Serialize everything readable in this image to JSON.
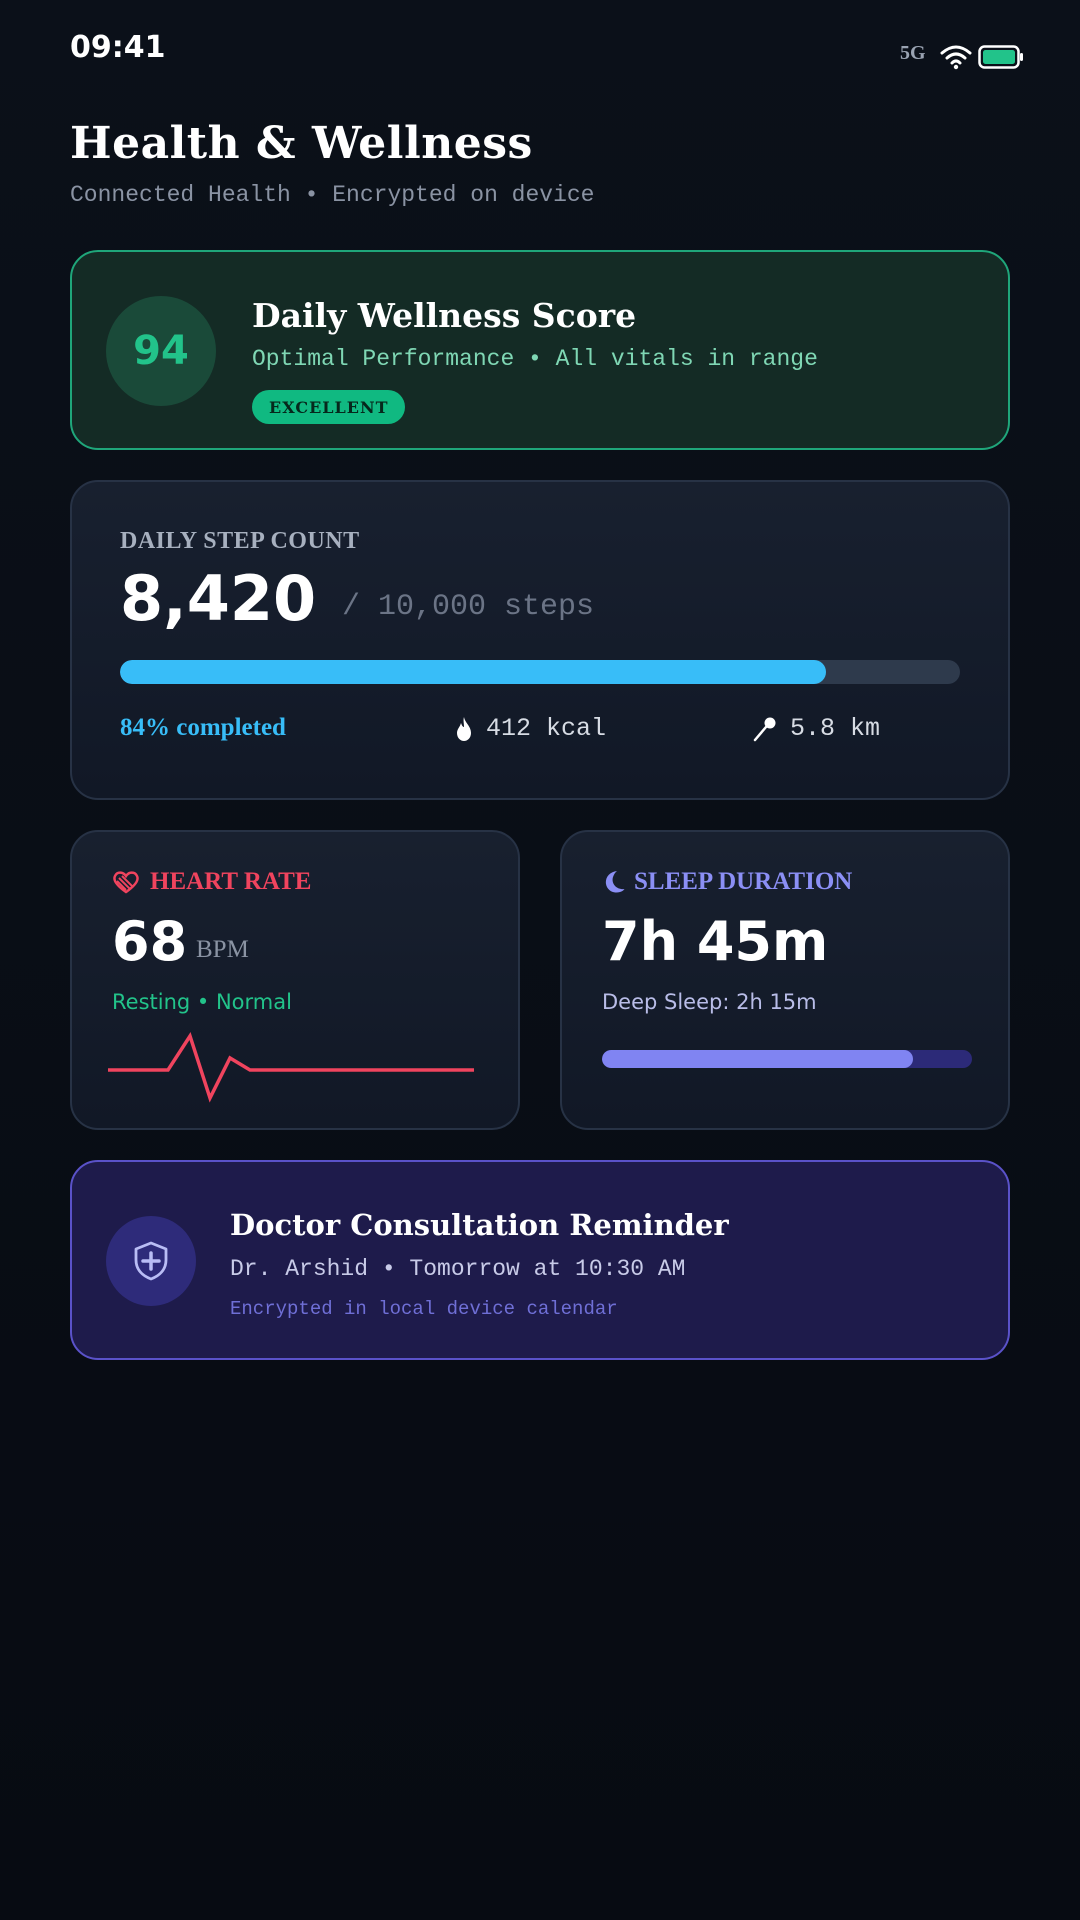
{
  "status_bar": {
    "time": "09:41",
    "network": "5G",
    "battery_icon": "battery-icon",
    "wifi_icon": "wifi-icon"
  },
  "header": {
    "title": "Health & Wellness",
    "subtitle": "Connected Health • Encrypted on device"
  },
  "wellness": {
    "score": "94",
    "title": "Daily Wellness Score",
    "subtitle": "Optimal Performance • All vitals in range",
    "badge": "EXCELLENT",
    "accent_color": "#10b981"
  },
  "steps": {
    "label": "DAILY STEP COUNT",
    "value": "8,420",
    "goal": "/ 10,000 steps",
    "progress_fraction": 0.84,
    "completed_text": "84% completed",
    "kcal": "412 kcal",
    "distance": "5.8 km",
    "kcal_icon": "flame-icon",
    "distance_icon": "walk-icon",
    "accent_color": "#38bdf8"
  },
  "heart": {
    "label": "HEART RATE",
    "value": "68",
    "unit": "BPM",
    "status": "Resting • Normal",
    "icon": "heart-icon",
    "accent_color": "#f0445e"
  },
  "sleep": {
    "label": "SLEEP DURATION",
    "value": "7h 45m",
    "deep": "Deep Sleep: 2h 15m",
    "progress_fraction": 0.84,
    "icon": "moon-icon",
    "accent_color": "#8084f2"
  },
  "reminder": {
    "title": "Doctor Consultation Reminder",
    "detail": "Dr. Arshid • Tomorrow at 10:30 AM",
    "note": "Encrypted in local device calendar",
    "icon": "shield-plus-icon",
    "accent_color": "#5a52c9"
  }
}
